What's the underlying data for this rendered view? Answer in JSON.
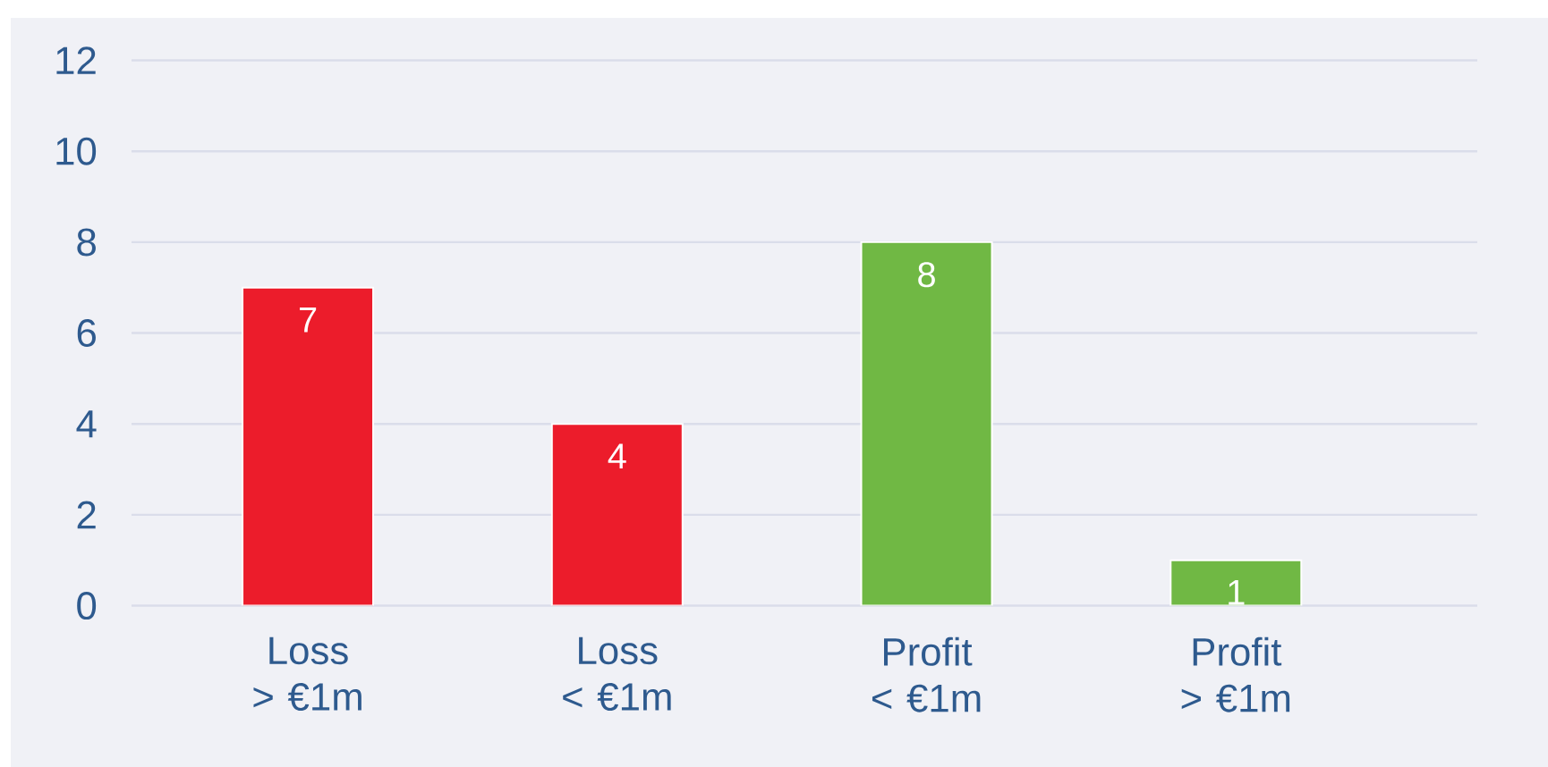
{
  "chart_data": {
    "type": "bar",
    "categories": [
      "Loss > €1m",
      "Loss < €1m",
      "Profit < €1m",
      "Profit > €1m"
    ],
    "values": [
      7,
      4,
      8,
      1
    ],
    "colors": [
      "#ec1c2b",
      "#ec1c2b",
      "#70b844",
      "#70b844"
    ],
    "ylim": [
      0,
      12
    ],
    "yticks": [
      0,
      2,
      4,
      6,
      8,
      10,
      12
    ],
    "grid": "y",
    "data_labels": true
  }
}
